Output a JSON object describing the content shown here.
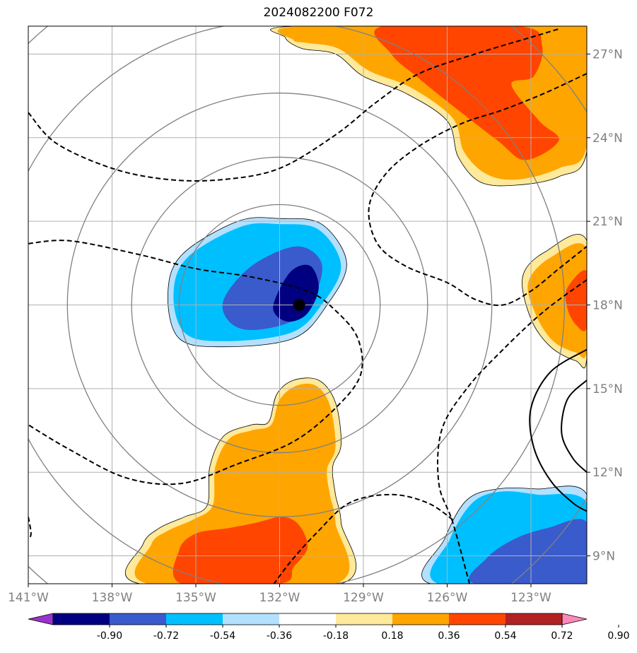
{
  "title": "2024082200 F072",
  "chart_data": {
    "type": "heatmap",
    "title": "2024082200 F072",
    "x_axis": {
      "ticks": [
        "141°W",
        "138°W",
        "135°W",
        "132°W",
        "129°W",
        "126°W",
        "123°W"
      ],
      "range": [
        -141.0,
        -121.0
      ]
    },
    "y_axis": {
      "ticks": [
        "9°N",
        "12°N",
        "15°N",
        "18°N",
        "21°N",
        "24°N",
        "27°N"
      ],
      "range": [
        8.0,
        28.0
      ],
      "side": "right"
    },
    "grid": true,
    "storm_center": {
      "lon": -131.3,
      "lat": 18.0
    },
    "range_rings": {
      "center_lon": -132.0,
      "center_lat": 18.0,
      "radii_deg": [
        3.6,
        5.3,
        7.6,
        10.2,
        13.0
      ]
    },
    "colorbar": {
      "levels": [
        "-0.90",
        "-0.72",
        "-0.54",
        "-0.36",
        "-0.18",
        "0.18",
        "0.36",
        "0.54",
        "0.72",
        "0.90"
      ],
      "colors": [
        "#9933cc",
        "#000080",
        "#3a5bcc",
        "#00bfff",
        "#b3e0ff",
        "#ffffff",
        "#ffe99a",
        "#ffa500",
        "#ff4500",
        "#b22222",
        "#ff88bb"
      ]
    },
    "shaded_regions": [
      {
        "name": "neg-blob-center",
        "levels": [
          {
            "color": "#b3e0ff",
            "pts": [
              [
                -136.0,
                18.4
              ],
              [
                -135.5,
                19.8
              ],
              [
                -133.5,
                21.0
              ],
              [
                -132.0,
                21.1
              ],
              [
                -130.5,
                20.9
              ],
              [
                -129.6,
                19.5
              ],
              [
                -130.3,
                18.0
              ],
              [
                -131.5,
                16.8
              ],
              [
                -134.0,
                16.5
              ],
              [
                -135.6,
                16.8
              ]
            ]
          },
          {
            "color": "#00bfff",
            "pts": [
              [
                -135.8,
                18.4
              ],
              [
                -135.3,
                19.7
              ],
              [
                -133.4,
                20.8
              ],
              [
                -132.0,
                20.9
              ],
              [
                -130.6,
                20.7
              ],
              [
                -129.8,
                19.4
              ],
              [
                -130.5,
                18.0
              ],
              [
                -131.6,
                17.0
              ],
              [
                -134.0,
                16.7
              ],
              [
                -135.4,
                17.0
              ]
            ]
          },
          {
            "color": "#3a5bcc",
            "pts": [
              [
                -134.0,
                18.2
              ],
              [
                -133.0,
                19.4
              ],
              [
                -131.4,
                20.1
              ],
              [
                -130.5,
                19.5
              ],
              [
                -130.8,
                18.2
              ],
              [
                -131.6,
                17.4
              ],
              [
                -133.0,
                17.1
              ],
              [
                -133.8,
                17.4
              ]
            ]
          },
          {
            "color": "#000080",
            "pts": [
              [
                -132.2,
                18.1
              ],
              [
                -131.6,
                19.2
              ],
              [
                -130.9,
                19.4
              ],
              [
                -130.6,
                18.6
              ],
              [
                -131.0,
                17.7
              ],
              [
                -131.6,
                17.4
              ],
              [
                -132.1,
                17.6
              ]
            ]
          }
        ]
      },
      {
        "name": "neg-blob-southeast",
        "levels": [
          {
            "color": "#b3e0ff",
            "pts": [
              [
                -126.6,
                8.0
              ],
              [
                -126.1,
                9.6
              ],
              [
                -125.3,
                11.0
              ],
              [
                -124.2,
                11.4
              ],
              [
                -122.8,
                11.4
              ],
              [
                -121.0,
                11.2
              ],
              [
                -121.0,
                8.0
              ]
            ]
          },
          {
            "color": "#00bfff",
            "pts": [
              [
                -126.3,
                8.0
              ],
              [
                -125.9,
                9.6
              ],
              [
                -125.1,
                10.9
              ],
              [
                -124.1,
                11.3
              ],
              [
                -122.8,
                11.2
              ],
              [
                -121.0,
                10.9
              ],
              [
                -121.0,
                8.0
              ]
            ]
          },
          {
            "color": "#3a5bcc",
            "pts": [
              [
                -125.0,
                8.0
              ],
              [
                -124.6,
                8.9
              ],
              [
                -123.6,
                9.6
              ],
              [
                -122.4,
                10.0
              ],
              [
                -121.0,
                10.2
              ],
              [
                -121.0,
                8.0
              ]
            ]
          }
        ]
      },
      {
        "name": "pos-blob-north",
        "levels": [
          {
            "color": "#ffe99a",
            "pts": [
              [
                -131.8,
                27.6
              ],
              [
                -131.4,
                28.0
              ],
              [
                -121.0,
                28.0
              ],
              [
                -121.0,
                23.5
              ],
              [
                -122.0,
                22.6
              ],
              [
                -123.5,
                22.3
              ],
              [
                -124.8,
                22.4
              ],
              [
                -125.6,
                23.3
              ],
              [
                -126.0,
                24.6
              ],
              [
                -127.5,
                25.6
              ],
              [
                -129.0,
                26.2
              ],
              [
                -130.0,
                27.0
              ],
              [
                -131.2,
                27.2
              ]
            ]
          },
          {
            "color": "#ffa500",
            "pts": [
              [
                -131.5,
                27.5
              ],
              [
                -131.2,
                28.0
              ],
              [
                -121.0,
                28.0
              ],
              [
                -121.0,
                23.7
              ],
              [
                -122.0,
                22.9
              ],
              [
                -123.5,
                22.5
              ],
              [
                -124.6,
                22.7
              ],
              [
                -125.4,
                23.5
              ],
              [
                -125.8,
                24.7
              ],
              [
                -127.3,
                25.8
              ],
              [
                -128.8,
                26.4
              ],
              [
                -129.9,
                27.2
              ],
              [
                -131.0,
                27.4
              ]
            ]
          },
          {
            "color": "#ff4500",
            "pts": [
              [
                -128.3,
                28.0
              ],
              [
                -123.4,
                28.0
              ],
              [
                -122.6,
                27.3
              ],
              [
                -122.9,
                26.2
              ],
              [
                -123.7,
                25.9
              ],
              [
                -122.7,
                24.6
              ],
              [
                -122.0,
                23.9
              ],
              [
                -123.2,
                23.2
              ],
              [
                -124.2,
                23.9
              ],
              [
                -126.0,
                25.3
              ],
              [
                -127.1,
                26.2
              ],
              [
                -128.0,
                27.0
              ]
            ]
          }
        ]
      },
      {
        "name": "pos-blob-east",
        "levels": [
          {
            "color": "#ffe99a",
            "pts": [
              [
                -121.0,
                20.3
              ],
              [
                -122.5,
                19.9
              ],
              [
                -123.3,
                19.0
              ],
              [
                -123.0,
                17.5
              ],
              [
                -122.3,
                16.5
              ],
              [
                -121.4,
                16.0
              ],
              [
                -121.0,
                16.1
              ]
            ]
          },
          {
            "color": "#ffa500",
            "pts": [
              [
                -121.0,
                20.0
              ],
              [
                -122.3,
                19.7
              ],
              [
                -123.1,
                18.8
              ],
              [
                -122.8,
                17.6
              ],
              [
                -122.2,
                16.7
              ],
              [
                -121.4,
                16.3
              ],
              [
                -121.0,
                16.4
              ]
            ]
          },
          {
            "color": "#ff4500",
            "pts": [
              [
                -121.0,
                19.2
              ],
              [
                -121.7,
                18.6
              ],
              [
                -121.7,
                17.9
              ],
              [
                -121.4,
                17.3
              ],
              [
                -121.0,
                17.2
              ]
            ]
          }
        ]
      },
      {
        "name": "pos-blob-south",
        "levels": [
          {
            "color": "#ffe99a",
            "pts": [
              [
                -137.0,
                8.0
              ],
              [
                -136.9,
                9.4
              ],
              [
                -136.3,
                10.0
              ],
              [
                -135.4,
                10.4
              ],
              [
                -134.6,
                10.8
              ],
              [
                -134.5,
                12.2
              ],
              [
                -134.0,
                13.3
              ],
              [
                -133.0,
                13.7
              ],
              [
                -132.4,
                13.8
              ],
              [
                -132.1,
                14.8
              ],
              [
                -131.5,
                15.3
              ],
              [
                -130.6,
                15.3
              ],
              [
                -130.0,
                14.5
              ],
              [
                -129.8,
                13.0
              ],
              [
                -130.1,
                12.2
              ],
              [
                -130.0,
                11.2
              ],
              [
                -129.8,
                10.2
              ],
              [
                -129.8,
                8.0
              ]
            ]
          },
          {
            "color": "#ffa500",
            "pts": [
              [
                -136.7,
                8.0
              ],
              [
                -136.6,
                9.4
              ],
              [
                -136.0,
                9.9
              ],
              [
                -135.1,
                10.3
              ],
              [
                -134.4,
                10.8
              ],
              [
                -134.3,
                12.2
              ],
              [
                -133.8,
                13.2
              ],
              [
                -133.0,
                13.5
              ],
              [
                -132.3,
                13.7
              ],
              [
                -132.0,
                14.6
              ],
              [
                -131.4,
                15.1
              ],
              [
                -130.7,
                15.1
              ],
              [
                -130.2,
                14.4
              ],
              [
                -130.0,
                12.9
              ],
              [
                -130.3,
                12.1
              ],
              [
                -130.2,
                11.2
              ],
              [
                -130.0,
                10.2
              ],
              [
                -130.0,
                8.0
              ]
            ]
          },
          {
            "color": "#ff4500",
            "pts": [
              [
                -135.5,
                8.0
              ],
              [
                -135.6,
                9.2
              ],
              [
                -135.0,
                9.8
              ],
              [
                -133.8,
                10.0
              ],
              [
                -132.8,
                10.2
              ],
              [
                -131.9,
                10.4
              ],
              [
                -131.3,
                10.1
              ],
              [
                -131.0,
                9.3
              ],
              [
                -131.5,
                8.6
              ],
              [
                -132.0,
                8.0
              ]
            ]
          }
        ]
      }
    ],
    "dashed_contours": [
      [
        [
          -141.0,
          24.9
        ],
        [
          -140.0,
          23.8
        ],
        [
          -138.0,
          22.9
        ],
        [
          -136.0,
          22.5
        ],
        [
          -134.0,
          22.5
        ],
        [
          -132.0,
          22.9
        ],
        [
          -130.0,
          24.1
        ],
        [
          -128.5,
          25.3
        ],
        [
          -127.0,
          26.3
        ],
        [
          -125.0,
          27.0
        ],
        [
          -123.0,
          27.6
        ],
        [
          -122.0,
          27.9
        ]
      ],
      [
        [
          -121.0,
          26.3
        ],
        [
          -122.5,
          25.6
        ],
        [
          -124.0,
          25.0
        ],
        [
          -125.5,
          24.5
        ],
        [
          -127.0,
          23.7
        ],
        [
          -128.2,
          22.7
        ],
        [
          -128.8,
          21.5
        ],
        [
          -128.5,
          20.2
        ],
        [
          -127.5,
          19.4
        ],
        [
          -126.0,
          18.8
        ],
        [
          -125.0,
          18.2
        ],
        [
          -124.0,
          18.0
        ],
        [
          -123.0,
          18.5
        ],
        [
          -122.0,
          19.3
        ],
        [
          -121.0,
          20.1
        ]
      ],
      [
        [
          -141.0,
          20.2
        ],
        [
          -139.5,
          20.3
        ],
        [
          -137.0,
          19.8
        ],
        [
          -135.0,
          19.3
        ],
        [
          -133.0,
          19.0
        ],
        [
          -131.0,
          18.5
        ],
        [
          -130.0,
          17.8
        ],
        [
          -129.2,
          16.8
        ],
        [
          -129.1,
          15.5
        ],
        [
          -130.0,
          14.3
        ],
        [
          -131.5,
          13.1
        ],
        [
          -133.5,
          12.3
        ],
        [
          -135.5,
          11.6
        ],
        [
          -137.5,
          11.8
        ],
        [
          -139.5,
          12.8
        ],
        [
          -141.0,
          13.7
        ]
      ],
      [
        [
          -141.0,
          10.4
        ],
        [
          -140.9,
          9.8
        ],
        [
          -141.0,
          9.6
        ]
      ],
      [
        [
          -121.0,
          18.9
        ],
        [
          -122.5,
          17.8
        ],
        [
          -124.0,
          16.4
        ],
        [
          -125.3,
          15.0
        ],
        [
          -126.2,
          13.5
        ],
        [
          -126.3,
          11.6
        ],
        [
          -125.8,
          10.2
        ],
        [
          -125.2,
          8.0
        ]
      ],
      [
        [
          -125.8,
          10.3
        ],
        [
          -126.7,
          10.9
        ],
        [
          -128.0,
          11.2
        ],
        [
          -129.5,
          10.9
        ],
        [
          -130.7,
          9.8
        ],
        [
          -131.6,
          8.8
        ],
        [
          -132.2,
          8.0
        ]
      ]
    ],
    "solid_contours": [
      [
        [
          -121.0,
          16.4
        ],
        [
          -122.3,
          15.6
        ],
        [
          -123.0,
          14.3
        ],
        [
          -122.9,
          12.9
        ],
        [
          -122.3,
          11.7
        ],
        [
          -121.5,
          10.9
        ],
        [
          -121.0,
          10.6
        ]
      ],
      [
        [
          -121.0,
          15.3
        ],
        [
          -121.7,
          14.6
        ],
        [
          -121.9,
          13.4
        ],
        [
          -121.5,
          12.5
        ],
        [
          -121.0,
          12.0
        ]
      ]
    ]
  }
}
